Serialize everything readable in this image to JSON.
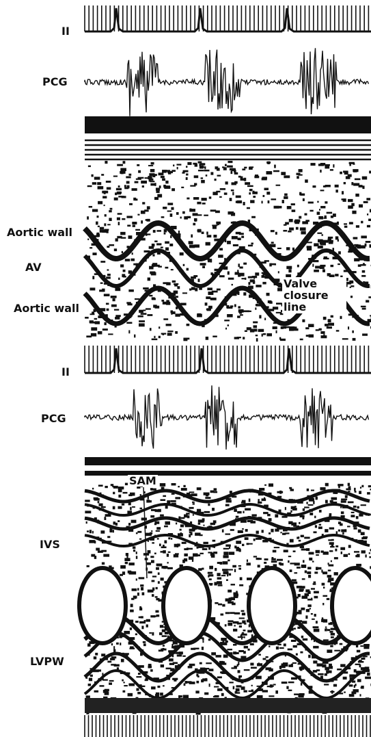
{
  "labels": [
    "II",
    "PCG",
    "Aortic wall",
    "AV",
    "Valve closure line",
    "Aortic wall",
    "II",
    "PCG",
    "SAM",
    "IVS",
    "LVPW"
  ]
}
